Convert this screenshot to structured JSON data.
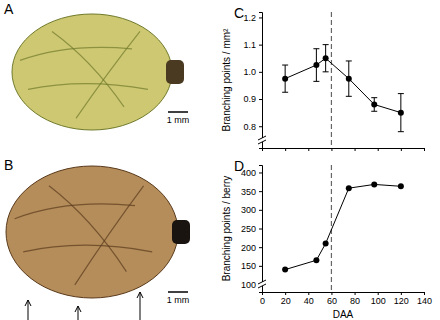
{
  "panels": [
    {
      "label": "A",
      "scale_bar": "1 mm"
    },
    {
      "label": "B",
      "scale_bar": "1 mm"
    }
  ],
  "chart_data": [
    {
      "type": "line",
      "panel_label": "C",
      "y_label": "Branching points / mm²",
      "x": [
        20,
        47,
        55,
        75,
        97,
        120
      ],
      "values": [
        0.975,
        1.025,
        1.05,
        0.975,
        0.88,
        0.85
      ],
      "errors": [
        0.05,
        0.06,
        0.05,
        0.065,
        0.025,
        0.07
      ],
      "color": "#000000",
      "marker": "circle",
      "line_style": "solid",
      "xlim": [
        0,
        140
      ],
      "xticks": [
        0,
        20,
        40,
        60,
        80,
        100,
        120,
        140
      ],
      "ylim": [
        0.72,
        1.22
      ],
      "yticks": [
        0.8,
        0.9,
        {
          "value": 1,
          "label": "1.0"
        },
        1.1,
        1.2
      ],
      "tick_labels": "y",
      "vline": {
        "x": 60,
        "line_style": "dashed"
      }
    },
    {
      "type": "line",
      "panel_label": "D",
      "y_label": "Branching points / berry",
      "x_label": "DAA",
      "x": [
        20,
        47,
        55,
        75,
        97,
        120
      ],
      "values": [
        140,
        165,
        210,
        358,
        368,
        363
      ],
      "color": "#000000",
      "marker": "circle",
      "line_style": "solid",
      "xlim": [
        0,
        140
      ],
      "xticks": [
        0,
        20,
        40,
        60,
        80,
        100,
        120,
        140
      ],
      "ylim": [
        80,
        420
      ],
      "yticks": [
        100,
        150,
        200,
        250,
        300,
        350,
        400
      ],
      "vline": {
        "x": 60,
        "line_style": "dashed"
      }
    }
  ]
}
